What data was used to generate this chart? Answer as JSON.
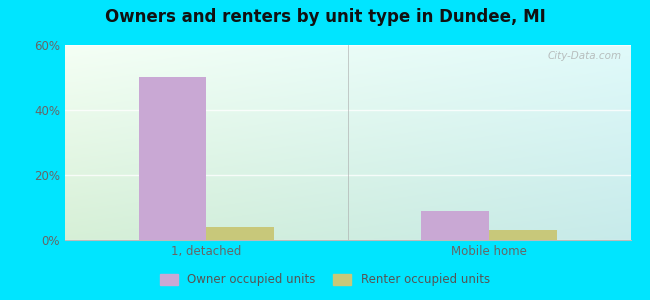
{
  "title": "Owners and renters by unit type in Dundee, MI",
  "categories": [
    "1, detached",
    "Mobile home"
  ],
  "owner_values": [
    50,
    9
  ],
  "renter_values": [
    4,
    3
  ],
  "owner_color": "#c9a8d4",
  "renter_color": "#c8c87a",
  "ylim": [
    0,
    60
  ],
  "yticks": [
    0,
    20,
    40,
    60
  ],
  "ytick_labels": [
    "0%",
    "20%",
    "40%",
    "60%"
  ],
  "background_outer": "#00e5ff",
  "legend_owner": "Owner occupied units",
  "legend_renter": "Renter occupied units",
  "bar_width": 0.12,
  "group_positions": [
    0.25,
    0.75
  ],
  "watermark": "City-Data.com",
  "grid_color": "#e0eed0",
  "spine_bottom_color": "#bbbbbb"
}
